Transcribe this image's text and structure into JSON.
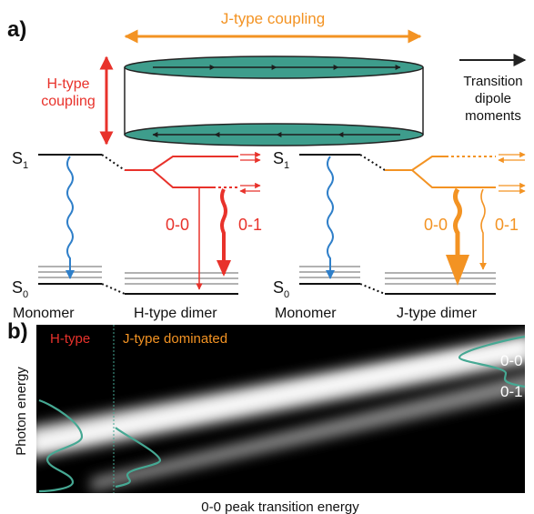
{
  "panel_a": {
    "label": "a)",
    "j_coupling_label": "J-type coupling",
    "h_coupling_line1": "H-type",
    "h_coupling_line2": "coupling",
    "dipole_line1": "Transition",
    "dipole_line2": "dipole",
    "dipole_line3": "moments",
    "s1": "S",
    "s0": "S",
    "sub1": "1",
    "sub0": "0",
    "monomer": "Monomer",
    "h_dimer": "H-type dimer",
    "j_dimer": "J-type dimer",
    "t00": "0-0",
    "t01": "0-1"
  },
  "panel_b": {
    "label": "b)",
    "h_region": "H-type",
    "j_region": "J-type dominated",
    "band_00": "0-0",
    "band_01": "0-1",
    "ylabel": "Photon energy",
    "xlabel": "0-0 peak transition energy"
  },
  "colors": {
    "h_type": "#e8322b",
    "j_type": "#f39323",
    "monomer": "#2f7fc9",
    "disc": "#3e9d8c",
    "spectrum": "#46a893"
  }
}
